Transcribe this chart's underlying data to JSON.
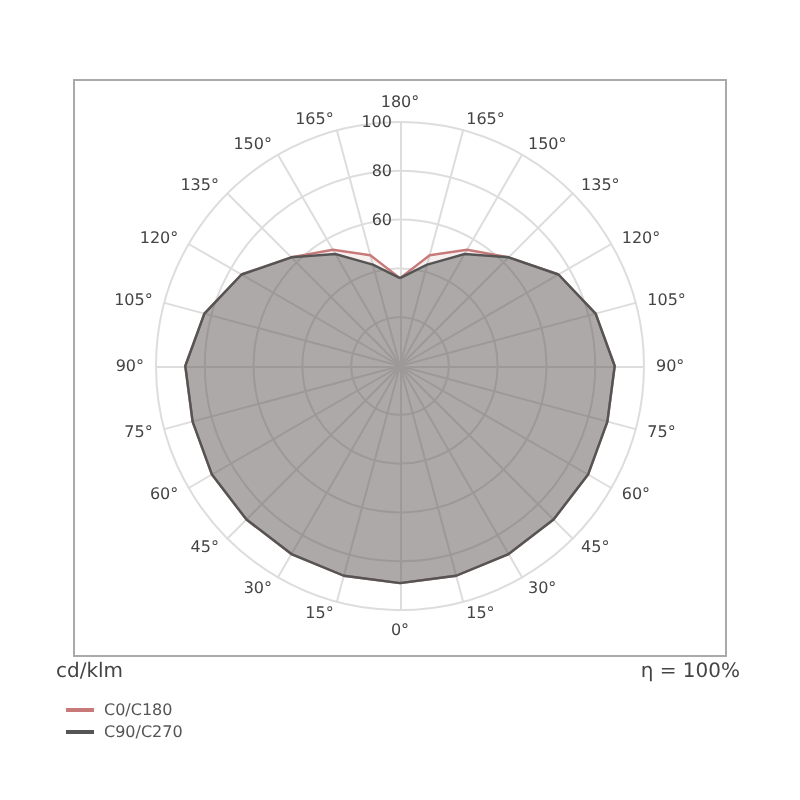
{
  "chart_data": {
    "type": "radar",
    "ylabel": "cd/klm",
    "annotations": [
      "η = 100%"
    ],
    "categories": [
      "180°",
      "165°",
      "150°",
      "135°",
      "120°",
      "105°",
      "90°",
      "75°",
      "60°",
      "45°",
      "30°",
      "15°",
      "0°",
      "15°",
      "30°",
      "45°",
      "60°",
      "75°",
      "90°",
      "105°",
      "120°",
      "135°",
      "150°",
      "165°"
    ],
    "series": [
      {
        "name": "C0/C180",
        "color": "#c87a7a",
        "values": [
          36,
          47,
          55,
          63,
          75,
          83,
          88,
          88,
          89,
          89,
          89,
          89,
          89,
          89,
          89,
          89,
          89,
          88,
          88,
          83,
          75,
          63,
          55,
          47
        ]
      },
      {
        "name": "C90/C270",
        "color": "#555555",
        "values": [
          36,
          43,
          53,
          63,
          75,
          83,
          88,
          88,
          89,
          89,
          89,
          89,
          89,
          89,
          89,
          89,
          89,
          88,
          88,
          83,
          75,
          63,
          53,
          43
        ]
      }
    ],
    "ylim": [
      0,
      100
    ],
    "yticks": [
      60,
      80,
      100
    ],
    "grid": true,
    "legend": "bottom left",
    "marker": "none",
    "line_style": "solid"
  }
}
